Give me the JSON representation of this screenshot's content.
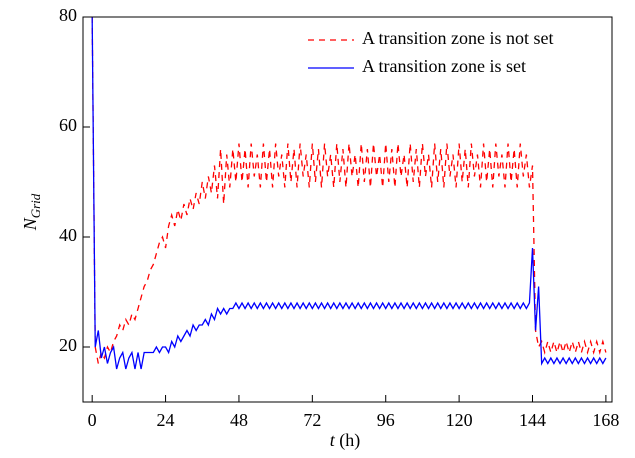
{
  "chart_data": {
    "type": "line",
    "x_label_var": "t",
    "x_label_unit": " (h)",
    "y_label_var": "N",
    "y_label_sub": "Grid",
    "x": [
      0,
      1,
      2,
      3,
      4,
      5,
      6,
      7,
      8,
      9,
      10,
      11,
      12,
      13,
      14,
      15,
      16,
      17,
      18,
      19,
      20,
      21,
      22,
      23,
      24,
      25,
      26,
      27,
      28,
      29,
      30,
      31,
      32,
      33,
      34,
      35,
      36,
      37,
      38,
      39,
      40,
      41,
      42,
      43,
      44,
      45,
      46,
      47,
      48,
      49,
      50,
      51,
      52,
      53,
      54,
      55,
      56,
      57,
      58,
      59,
      60,
      61,
      62,
      63,
      64,
      65,
      66,
      67,
      68,
      69,
      70,
      71,
      72,
      73,
      74,
      75,
      76,
      77,
      78,
      79,
      80,
      81,
      82,
      83,
      84,
      85,
      86,
      87,
      88,
      89,
      90,
      91,
      92,
      93,
      94,
      95,
      96,
      97,
      98,
      99,
      100,
      101,
      102,
      103,
      104,
      105,
      106,
      107,
      108,
      109,
      110,
      111,
      112,
      113,
      114,
      115,
      116,
      117,
      118,
      119,
      120,
      121,
      122,
      123,
      124,
      125,
      126,
      127,
      128,
      129,
      130,
      131,
      132,
      133,
      134,
      135,
      136,
      137,
      138,
      139,
      140,
      141,
      142,
      143,
      144,
      145,
      146,
      147,
      148,
      149,
      150,
      151,
      152,
      153,
      154,
      155,
      156,
      157,
      158,
      159,
      160,
      161,
      162,
      163,
      164,
      165,
      166,
      167,
      168
    ],
    "series": [
      {
        "name": "A transition zone is not set",
        "color": "#ff0000",
        "style": "dashed",
        "values": [
          80,
          20,
          17,
          19,
          18,
          20,
          19,
          21,
          22,
          24,
          23,
          25,
          24,
          26,
          25,
          27,
          29,
          31,
          32,
          34,
          35,
          37,
          39,
          40,
          38,
          42,
          44,
          42,
          45,
          43,
          46,
          44,
          47,
          45,
          48,
          46,
          50,
          47,
          51,
          48,
          53,
          47,
          56,
          46,
          55,
          49,
          56,
          50,
          57,
          50,
          56,
          49,
          57,
          51,
          55,
          49,
          57,
          50,
          56,
          49,
          57,
          51,
          55,
          49,
          57,
          50,
          56,
          49,
          57,
          51,
          55,
          49,
          57,
          50,
          56,
          49,
          57,
          51,
          55,
          49,
          57,
          50,
          56,
          49,
          57,
          51,
          55,
          49,
          57,
          50,
          56,
          49,
          57,
          51,
          55,
          49,
          57,
          50,
          56,
          49,
          57,
          51,
          55,
          49,
          57,
          50,
          56,
          49,
          57,
          51,
          55,
          49,
          57,
          50,
          56,
          49,
          57,
          51,
          55,
          49,
          57,
          50,
          56,
          49,
          57,
          51,
          55,
          49,
          57,
          50,
          56,
          49,
          57,
          51,
          55,
          49,
          57,
          50,
          56,
          49,
          57,
          51,
          55,
          49,
          53,
          23,
          20,
          21,
          19,
          21,
          19,
          21,
          19,
          21,
          19,
          21,
          19,
          21,
          19,
          21,
          19,
          21,
          19,
          21,
          19,
          21,
          19,
          21,
          19
        ]
      },
      {
        "name": "A transition zone is set",
        "color": "#0000ff",
        "style": "solid",
        "values": [
          80,
          20,
          23,
          18,
          20,
          17,
          19,
          20,
          16,
          18,
          19,
          16,
          18,
          19,
          16,
          19,
          16,
          19,
          19,
          19,
          19,
          20,
          19,
          20,
          20,
          19,
          21,
          20,
          22,
          21,
          22,
          23,
          22,
          24,
          23,
          24,
          24,
          25,
          24,
          26,
          25,
          27,
          26,
          27,
          26,
          27,
          27,
          28,
          27,
          28,
          27,
          28,
          27,
          28,
          27,
          28,
          27,
          28,
          27,
          28,
          27,
          28,
          27,
          28,
          27,
          28,
          27,
          28,
          27,
          28,
          27,
          28,
          27,
          28,
          27,
          28,
          27,
          28,
          27,
          28,
          27,
          28,
          27,
          28,
          27,
          28,
          27,
          28,
          27,
          28,
          27,
          28,
          27,
          28,
          27,
          28,
          27,
          28,
          27,
          28,
          27,
          28,
          27,
          28,
          27,
          28,
          27,
          28,
          27,
          28,
          27,
          28,
          27,
          28,
          27,
          28,
          27,
          28,
          27,
          28,
          27,
          28,
          27,
          28,
          27,
          28,
          27,
          28,
          27,
          28,
          27,
          28,
          27,
          28,
          27,
          28,
          27,
          28,
          27,
          28,
          27,
          28,
          27,
          28,
          38,
          23,
          31,
          17,
          18,
          17,
          18,
          17,
          18,
          17,
          18,
          17,
          18,
          17,
          18,
          17,
          18,
          17,
          18,
          17,
          18,
          17,
          18,
          17,
          18
        ]
      }
    ],
    "xlim": [
      -3,
      170
    ],
    "xticks": [
      0,
      24,
      48,
      72,
      96,
      120,
      144,
      168
    ],
    "ylim": [
      10,
      80
    ],
    "yticks": [
      20,
      40,
      60,
      80
    ],
    "legend": "top-right"
  }
}
